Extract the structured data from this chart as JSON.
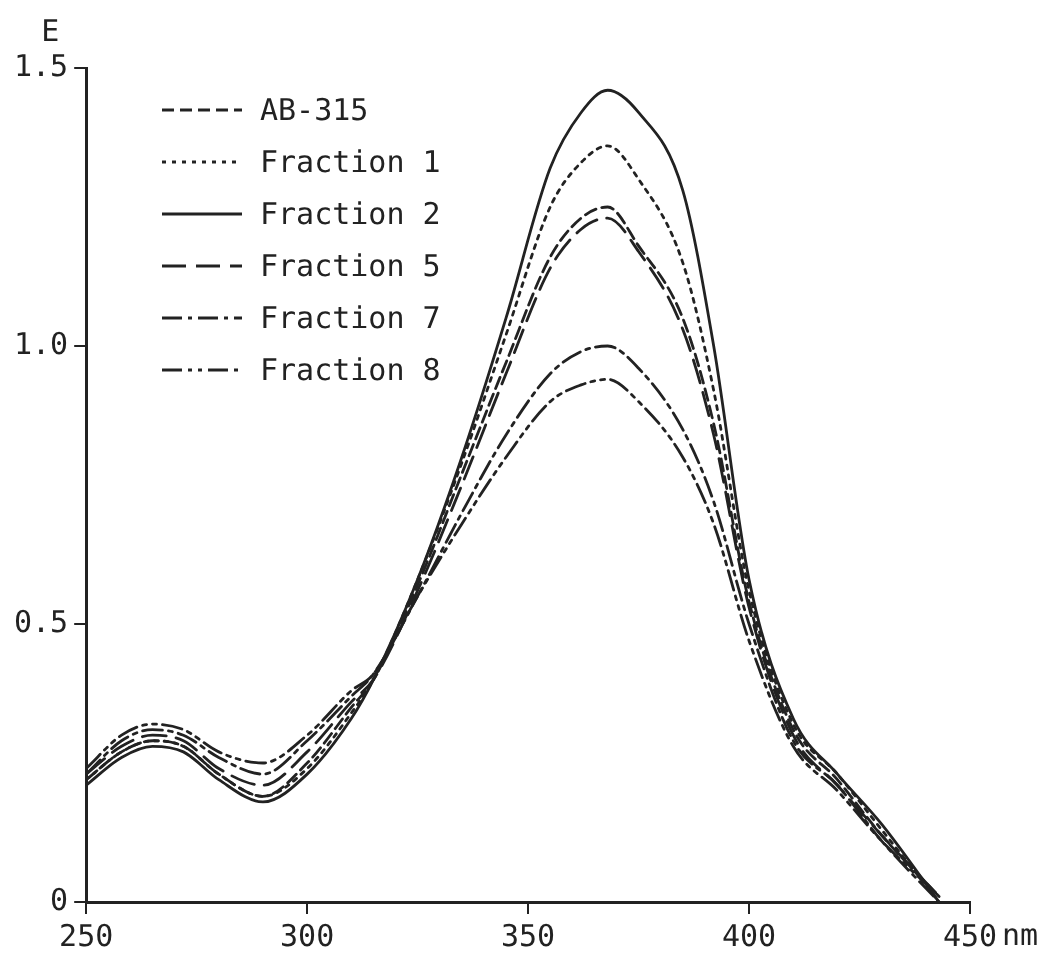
{
  "chart_data": {
    "type": "line",
    "xlabel": "nm",
    "ylabel": "E",
    "x": [
      250,
      258,
      265,
      272,
      280,
      290,
      300,
      310,
      315,
      325,
      335,
      345,
      355,
      362,
      368,
      375,
      385,
      392,
      400,
      410,
      420,
      430,
      443
    ],
    "series": [
      {
        "name": "AB-315",
        "color": "#222222",
        "line_style": "dashed",
        "values": [
          0.22,
          0.27,
          0.29,
          0.28,
          0.23,
          0.19,
          0.25,
          0.35,
          0.4,
          0.57,
          0.77,
          0.97,
          1.16,
          1.23,
          1.25,
          1.18,
          1.05,
          0.86,
          0.54,
          0.31,
          0.22,
          0.12,
          0.01
        ]
      },
      {
        "name": "Fraction 1",
        "color": "#222222",
        "line_style": "dotted",
        "values": [
          0.22,
          0.27,
          0.29,
          0.28,
          0.23,
          0.19,
          0.24,
          0.34,
          0.4,
          0.58,
          0.79,
          1.02,
          1.25,
          1.33,
          1.36,
          1.3,
          1.15,
          0.92,
          0.56,
          0.32,
          0.23,
          0.13,
          0.0
        ]
      },
      {
        "name": "Fraction 2",
        "color": "#222222",
        "line_style": "solid",
        "values": [
          0.21,
          0.26,
          0.28,
          0.27,
          0.22,
          0.18,
          0.23,
          0.33,
          0.4,
          0.58,
          0.8,
          1.05,
          1.32,
          1.42,
          1.46,
          1.42,
          1.28,
          1.0,
          0.58,
          0.33,
          0.23,
          0.14,
          0.0
        ]
      },
      {
        "name": "Fraction 5",
        "color": "#222222",
        "line_style": "longdash",
        "values": [
          0.23,
          0.28,
          0.3,
          0.29,
          0.24,
          0.21,
          0.27,
          0.36,
          0.4,
          0.56,
          0.75,
          0.95,
          1.14,
          1.21,
          1.23,
          1.17,
          1.03,
          0.84,
          0.53,
          0.3,
          0.21,
          0.12,
          0.01
        ]
      },
      {
        "name": "Fraction 7",
        "color": "#222222",
        "line_style": "dashdot",
        "values": [
          0.23,
          0.29,
          0.31,
          0.3,
          0.26,
          0.23,
          0.29,
          0.37,
          0.41,
          0.55,
          0.7,
          0.84,
          0.95,
          0.99,
          1.0,
          0.96,
          0.85,
          0.72,
          0.5,
          0.29,
          0.21,
          0.11,
          0.0
        ]
      },
      {
        "name": "Fraction 8",
        "color": "#222222",
        "line_style": "dashdotdot",
        "values": [
          0.24,
          0.3,
          0.32,
          0.31,
          0.27,
          0.25,
          0.3,
          0.38,
          0.41,
          0.55,
          0.68,
          0.8,
          0.9,
          0.93,
          0.94,
          0.9,
          0.8,
          0.68,
          0.47,
          0.28,
          0.2,
          0.11,
          0.01
        ]
      }
    ],
    "xlim": [
      250,
      450
    ],
    "xticks": [
      250,
      300,
      350,
      400,
      450
    ],
    "ylim": [
      0,
      1.5
    ],
    "yticks": [
      0,
      {
        "value": 0.5,
        "label": "0.5"
      },
      {
        "value": 1,
        "label": "1.0"
      },
      1.5
    ],
    "grid": false,
    "legend": "top left",
    "marker": "none"
  }
}
